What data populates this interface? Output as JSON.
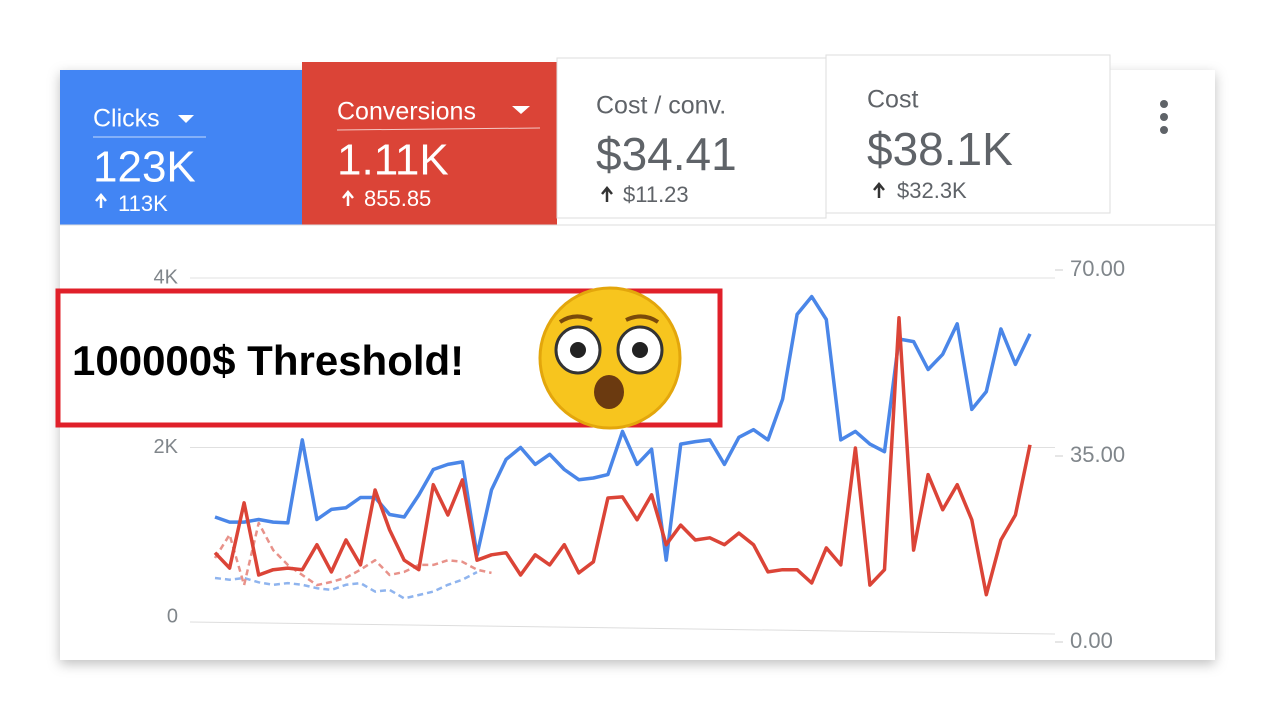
{
  "cards": [
    {
      "label": "Clicks",
      "value": "123K",
      "change": "113K"
    },
    {
      "label": "Conversions",
      "value": "1.11K",
      "change": "855.85"
    },
    {
      "label": "Cost / conv.",
      "value": "$34.41",
      "change": "$11.23"
    },
    {
      "label": "Cost",
      "value": "$38.1K",
      "change": "$32.3K"
    }
  ],
  "chart_data": {
    "type": "line",
    "annotation": "100000$ Threshold!",
    "ylim": [
      0,
      4000
    ],
    "yticks": [
      0,
      {
        "value": 2000,
        "label": "2K"
      },
      {
        "value": 4000,
        "label": "4K"
      }
    ],
    "y2lim": [
      0,
      70
    ],
    "y2ticks": [
      {
        "value": 0,
        "label": "0.00"
      },
      {
        "value": 35,
        "label": "35.00"
      },
      {
        "value": 70,
        "label": "70.00"
      }
    ],
    "grid": true,
    "series": [
      {
        "name": "Clicks",
        "color": "#4a86e8",
        "dashed": false,
        "values": [
          1180,
          1120,
          1120,
          1150,
          1120,
          1110,
          2090,
          1150,
          1270,
          1290,
          1410,
          1410,
          1210,
          1180,
          1440,
          1740,
          1800,
          1830,
          730,
          1500,
          1860,
          2000,
          1800,
          1920,
          1740,
          1620,
          1640,
          1680,
          2190,
          1800,
          1980,
          670,
          2040,
          2070,
          2090,
          1800,
          2120,
          2210,
          2090,
          2570,
          3570,
          3780,
          3510,
          2090,
          2190,
          2040,
          1950,
          3280,
          3250,
          2920,
          3100,
          3460,
          2450,
          2660,
          3400,
          2980,
          3340
        ]
      },
      {
        "name": "Conversions",
        "color": "#db4437",
        "axis": "y2",
        "dashed": false,
        "values": [
          16.8,
          13.9,
          26.2,
          12.6,
          13.6,
          13.9,
          13.6,
          18.3,
          13.2,
          19.2,
          14.5,
          28.6,
          21.1,
          15.4,
          13.6,
          29.6,
          23.9,
          30.5,
          15.4,
          16.4,
          16.8,
          12.6,
          16.4,
          14.5,
          18.3,
          13.0,
          15.1,
          27.1,
          27.3,
          23.0,
          27.7,
          18.3,
          22.0,
          19.2,
          19.6,
          18.3,
          20.5,
          18.3,
          13.2,
          13.6,
          13.6,
          11.1,
          17.7,
          14.5,
          36.5,
          10.7,
          13.6,
          61.0,
          17.3,
          31.5,
          24.9,
          29.6,
          23.0,
          8.9,
          19.2,
          23.9,
          37.1
        ]
      },
      {
        "color": "#8fb4ee",
        "dashed": true,
        "values": [
          460,
          440,
          460,
          410,
          380,
          400,
          380,
          340,
          320,
          380,
          400,
          300,
          320,
          220,
          260,
          300,
          380,
          440,
          530,
          null,
          null,
          null,
          null,
          null,
          null,
          null,
          null,
          null,
          null,
          null,
          null,
          null,
          null,
          null,
          null,
          null,
          null,
          null,
          null,
          null,
          null,
          null,
          null,
          null,
          null,
          null,
          null,
          null,
          null,
          null,
          null,
          null,
          null,
          null,
          null,
          null,
          null
        ]
      },
      {
        "color": "#e8928a",
        "axis": "y2",
        "dashed": true,
        "values": [
          15.8,
          20.2,
          10.7,
          22.4,
          17.3,
          14.5,
          12.6,
          10.7,
          11.3,
          12.1,
          13.6,
          15.4,
          12.6,
          13.2,
          14.5,
          14.5,
          15.4,
          15.1,
          13.6,
          13.0,
          null,
          null,
          null,
          null,
          null,
          null,
          null,
          null,
          null,
          null,
          null,
          null,
          null,
          null,
          null,
          null,
          null,
          null,
          null,
          null,
          null,
          null,
          null,
          null,
          null,
          null,
          null,
          null,
          null,
          null,
          null,
          null,
          null,
          null,
          null,
          null,
          null
        ]
      }
    ]
  }
}
